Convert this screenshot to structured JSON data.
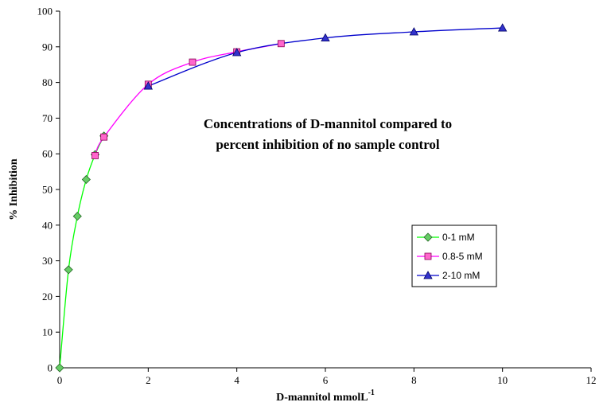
{
  "chart_data": {
    "type": "line",
    "title": "",
    "annotation_lines": [
      "Concentrations of D-mannitol compared to",
      "percent inhibition of no sample control"
    ],
    "xlabel": "D-mannitol mmolL",
    "xlabel_superscript": "-1",
    "ylabel": "% Inhibition",
    "xlim": [
      0,
      12
    ],
    "ylim": [
      0,
      100
    ],
    "xticks": [
      0,
      2,
      4,
      6,
      8,
      10,
      12
    ],
    "yticks": [
      0,
      10,
      20,
      30,
      40,
      50,
      60,
      70,
      80,
      90,
      100
    ],
    "grid": false,
    "legend_position": "right-middle",
    "series": [
      {
        "name": "0-1 mM",
        "color": "#00ff00",
        "marker": "diamond",
        "marker_fill": "#66cc66",
        "x": [
          0,
          0.2,
          0.4,
          0.6,
          0.8,
          1.0
        ],
        "y": [
          0,
          27.5,
          42.5,
          52.8,
          59.8,
          65.0
        ]
      },
      {
        "name": "0.8-5 mM",
        "color": "#ff00ff",
        "marker": "square",
        "marker_fill": "#ff66cc",
        "x": [
          0.8,
          1,
          2,
          3,
          4,
          5
        ],
        "y": [
          59.5,
          64.7,
          79.5,
          85.7,
          88.6,
          90.9
        ]
      },
      {
        "name": "2-10 mM",
        "color": "#0000cc",
        "marker": "triangle",
        "marker_fill": "#3333cc",
        "x": [
          2,
          4,
          6,
          8,
          10
        ],
        "y": [
          79.0,
          88.4,
          92.5,
          94.2,
          95.3
        ]
      }
    ]
  }
}
